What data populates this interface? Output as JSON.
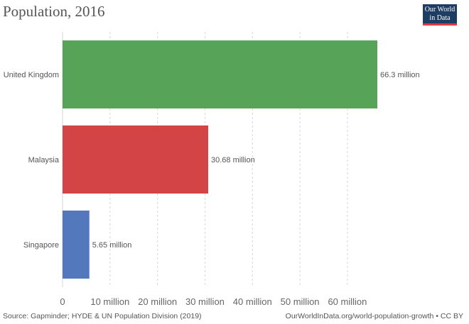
{
  "header": {
    "title": "Population, 2016"
  },
  "logo": {
    "line1": "Our World",
    "line2": "in Data",
    "bg_color": "#1d3d63",
    "accent_color": "#e63946"
  },
  "chart_data": {
    "type": "bar",
    "orientation": "horizontal",
    "title": "Population, 2016",
    "categories": [
      "United Kingdom",
      "Malaysia",
      "Singapore"
    ],
    "values": [
      66.3,
      30.68,
      5.65
    ],
    "value_labels": [
      "66.3 million",
      "30.68 million",
      "5.65 million"
    ],
    "colors": [
      "#4e9f50",
      "#d03a3c",
      "#4a72b8"
    ],
    "xlim": [
      0,
      66.3
    ],
    "ticks": [
      0,
      10,
      20,
      30,
      40,
      50,
      60
    ],
    "tick_labels": [
      "0",
      "10 million",
      "20 million",
      "30 million",
      "40 million",
      "50 million",
      "60 million"
    ],
    "grid": "vertical-dashed",
    "legend": "none"
  },
  "footer": {
    "source": "Source: Gapminder; HYDE & UN Population Division (2019)",
    "url": "OurWorldInData.org/world-population-growth • CC BY"
  }
}
